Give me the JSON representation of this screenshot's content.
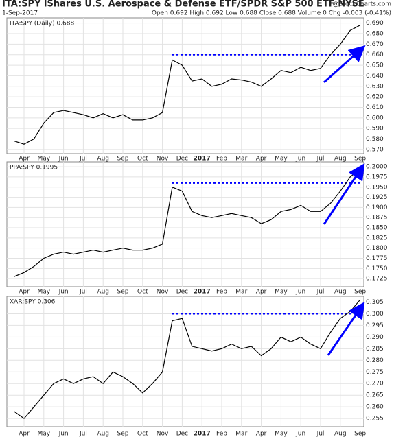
{
  "chart_data": [
    {
      "type": "line",
      "title": "ITA:SPY iShares U.S. Aerospace & Defense ETF/SPDR S&P 500 ETF NYSE",
      "subtitle": "1-Sep-2017",
      "info": "Open 0.692 High 0.692 Low 0.688 Close 0.688 Volume 0 Chg -0.003 (-0.41%)",
      "source": "@StockCharts.com",
      "categories": [
        null,
        "Apr",
        null,
        "May",
        null,
        "Jun",
        null,
        "Jul",
        null,
        "Aug",
        null,
        "Sep",
        null,
        "Oct",
        null,
        "Nov",
        null,
        "Dec",
        null,
        "2017",
        null,
        "Feb",
        null,
        "Mar",
        null,
        "Apr",
        null,
        "May",
        null,
        "Jun",
        null,
        "Jul",
        null,
        "Aug",
        null,
        "Sep"
      ],
      "series": [
        {
          "name": "ITA:SPY (Daily) 0.688",
          "color": "#000000",
          "values": [
            0.578,
            0.575,
            0.58,
            0.595,
            0.605,
            0.607,
            0.605,
            0.603,
            0.6,
            0.604,
            0.6,
            0.603,
            0.598,
            0.598,
            0.6,
            0.605,
            0.655,
            0.65,
            0.635,
            0.637,
            0.63,
            0.632,
            0.637,
            0.636,
            0.634,
            0.63,
            0.637,
            0.645,
            0.643,
            0.648,
            0.645,
            0.647,
            0.66,
            0.67,
            0.683,
            0.688
          ]
        }
      ],
      "hline": {
        "value": 0.66,
        "color": "#0000ff"
      },
      "ylim": [
        0.566,
        0.695
      ],
      "yticks": [
        {
          "value": 0.57,
          "label": "0.570"
        },
        {
          "value": 0.58,
          "label": "0.580"
        },
        {
          "value": 0.59,
          "label": "0.590"
        },
        {
          "value": 0.6,
          "label": "0.600"
        },
        {
          "value": 0.61,
          "label": "0.610"
        },
        {
          "value": 0.62,
          "label": "0.620"
        },
        {
          "value": 0.63,
          "label": "0.630"
        },
        {
          "value": 0.64,
          "label": "0.640"
        },
        {
          "value": 0.65,
          "label": "0.650"
        },
        {
          "value": 0.66,
          "label": "0.660"
        },
        {
          "value": 0.67,
          "label": "0.670"
        },
        {
          "value": 0.68,
          "label": "0.680"
        },
        {
          "value": 0.69,
          "label": "0.690"
        }
      ],
      "grid": true
    },
    {
      "type": "line",
      "categories": [
        null,
        "Apr",
        null,
        "May",
        null,
        "Jun",
        null,
        "Jul",
        null,
        "Aug",
        null,
        "Sep",
        null,
        "Oct",
        null,
        "Nov",
        null,
        "Dec",
        null,
        "2017",
        null,
        "Feb",
        null,
        "Mar",
        null,
        "Apr",
        null,
        "May",
        null,
        "Jun",
        null,
        "Jul",
        null,
        "Aug",
        null,
        "Sep"
      ],
      "series": [
        {
          "name": "PPA:SPY 0.1995",
          "color": "#000000",
          "values": [
            0.173,
            0.174,
            0.1755,
            0.1775,
            0.1785,
            0.179,
            0.1785,
            0.179,
            0.1795,
            0.179,
            0.1795,
            0.18,
            0.1795,
            0.1795,
            0.18,
            0.181,
            0.195,
            0.194,
            0.189,
            0.188,
            0.1875,
            0.188,
            0.1885,
            0.188,
            0.1875,
            0.186,
            0.187,
            0.189,
            0.1895,
            0.1905,
            0.189,
            0.189,
            0.191,
            0.194,
            0.1975,
            0.1995
          ]
        }
      ],
      "hline": {
        "value": 0.196,
        "color": "#0000ff"
      },
      "ylim": [
        0.1705,
        0.2012
      ],
      "yticks": [
        {
          "value": 0.1725,
          "label": "0.1725"
        },
        {
          "value": 0.175,
          "label": "0.1750"
        },
        {
          "value": 0.1775,
          "label": "0.1775"
        },
        {
          "value": 0.18,
          "label": "0.1800"
        },
        {
          "value": 0.1825,
          "label": "0.1825"
        },
        {
          "value": 0.185,
          "label": "0.1850"
        },
        {
          "value": 0.1875,
          "label": "0.1875"
        },
        {
          "value": 0.19,
          "label": "0.1900"
        },
        {
          "value": 0.1925,
          "label": "0.1925"
        },
        {
          "value": 0.195,
          "label": "0.1950"
        },
        {
          "value": 0.1975,
          "label": "0.1975"
        },
        {
          "value": 0.2,
          "label": "0.2000"
        }
      ],
      "grid": true
    },
    {
      "type": "line",
      "categories": [
        null,
        "Apr",
        null,
        "May",
        null,
        "Jun",
        null,
        "Jul",
        null,
        "Aug",
        null,
        "Sep",
        null,
        "Oct",
        null,
        "Nov",
        null,
        "Dec",
        null,
        "2017",
        null,
        "Feb",
        null,
        "Mar",
        null,
        "Apr",
        null,
        "May",
        null,
        "Jun",
        null,
        "Jul",
        null,
        "Aug",
        null,
        "Sep"
      ],
      "series": [
        {
          "name": "XAR:SPY 0.306",
          "color": "#000000",
          "values": [
            0.258,
            0.255,
            0.26,
            0.265,
            0.27,
            0.272,
            0.27,
            0.272,
            0.273,
            0.27,
            0.275,
            0.273,
            0.27,
            0.266,
            0.27,
            0.275,
            0.297,
            0.298,
            0.286,
            0.285,
            0.284,
            0.285,
            0.287,
            0.285,
            0.286,
            0.282,
            0.285,
            0.29,
            0.288,
            0.29,
            0.287,
            0.285,
            0.292,
            0.298,
            0.301,
            0.306
          ]
        }
      ],
      "hline": {
        "value": 0.3,
        "color": "#0000ff"
      },
      "ylim": [
        0.2515,
        0.3075
      ],
      "yticks": [
        {
          "value": 0.255,
          "label": "0.255"
        },
        {
          "value": 0.26,
          "label": "0.260"
        },
        {
          "value": 0.265,
          "label": "0.265"
        },
        {
          "value": 0.27,
          "label": "0.270"
        },
        {
          "value": 0.275,
          "label": "0.275"
        },
        {
          "value": 0.28,
          "label": "0.280"
        },
        {
          "value": 0.285,
          "label": "0.285"
        },
        {
          "value": 0.29,
          "label": "0.290"
        },
        {
          "value": 0.295,
          "label": "0.295"
        },
        {
          "value": 0.3,
          "label": "0.300"
        },
        {
          "value": 0.305,
          "label": "0.305"
        }
      ],
      "grid": true
    }
  ]
}
